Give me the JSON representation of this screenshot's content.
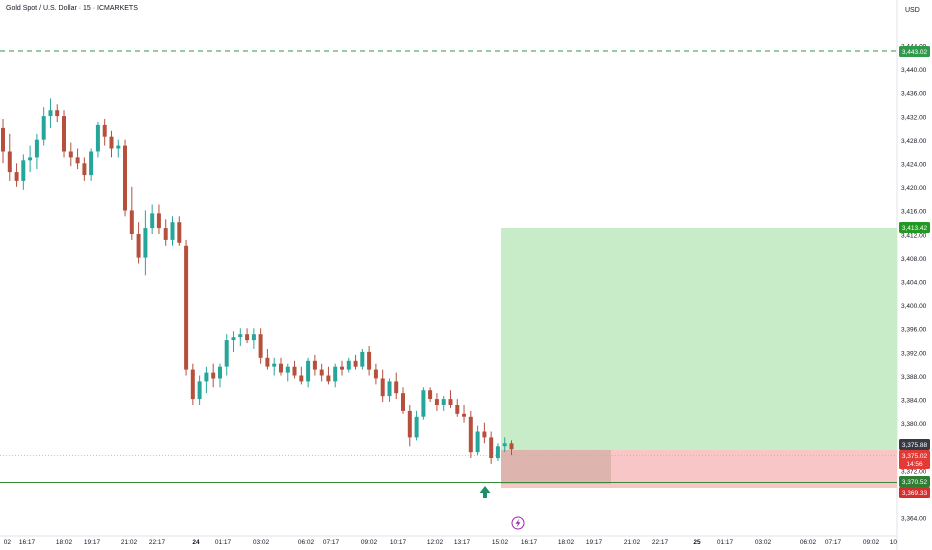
{
  "header": {
    "symbol_title": "Gold Spot / U.S. Dollar · 15 · ICMARKETS",
    "currency": "USD"
  },
  "colors": {
    "up": "#26a69a",
    "down": "#b64f3c",
    "target_zone": "#c8ebc8",
    "stop_zone": "#f8c6c6",
    "dashed_line": "#2e9a4a",
    "entry_line": "#3b8a3b",
    "buy_arrow": "#1a8f6a"
  },
  "price_axis": {
    "ticks": [
      "3,444.00",
      "3,440.00",
      "3,436.00",
      "3,432.00",
      "3,428.00",
      "3,424.00",
      "3,420.00",
      "3,416.00",
      "3,412.00",
      "3,408.00",
      "3,404.00",
      "3,400.00",
      "3,396.00",
      "3,392.00",
      "3,388.00",
      "3,384.00",
      "3,380.00",
      "3,376.00",
      "3,372.00",
      "3,368.00",
      "3,364.00"
    ]
  },
  "time_axis": {
    "labels": [
      "02",
      "16:17",
      "18:02",
      "19:17",
      "21:02",
      "22:17",
      "24",
      "01:17",
      "03:02",
      "06:02",
      "07:17",
      "09:02",
      "10:17",
      "12:02",
      "13:17",
      "15:02",
      "16:17",
      "18:02",
      "19:17",
      "21:02",
      "22:17",
      "25",
      "01:17",
      "03:02",
      "06:02",
      "07:17",
      "09:02",
      "10"
    ]
  },
  "price_tags": {
    "dashed_level": "3,443.02",
    "target": "3,413.42",
    "current_price": "3,375.88",
    "last_price": "3,375.02",
    "countdown": "14:56",
    "entry": "3,370.52",
    "stop": "3,369.33"
  },
  "position": {
    "type": "long",
    "entry": 3370.52,
    "target": 3413.42,
    "stop": 3369.33
  },
  "chart_data": {
    "type": "candlestick",
    "title": "Gold Spot / U.S. Dollar · 15 · ICMARKETS",
    "ylabel": "USD",
    "ylim": [
      3362.5,
      3447.5
    ],
    "candles": [
      [
        3430.0,
        3431.5,
        3424.0,
        3426.0
      ],
      [
        3426.0,
        3429.0,
        3421.0,
        3422.5
      ],
      [
        3422.5,
        3424.0,
        3420.0,
        3421.0
      ],
      [
        3421.0,
        3425.5,
        3419.5,
        3424.5
      ],
      [
        3424.5,
        3427.0,
        3422.5,
        3425.0
      ],
      [
        3425.0,
        3429.0,
        3423.0,
        3428.0
      ],
      [
        3428.0,
        3433.5,
        3427.0,
        3432.0
      ],
      [
        3432.0,
        3435.0,
        3430.0,
        3433.0
      ],
      [
        3433.0,
        3434.0,
        3431.0,
        3432.0
      ],
      [
        3432.0,
        3433.0,
        3425.0,
        3426.0
      ],
      [
        3426.0,
        3427.5,
        3423.5,
        3425.0
      ],
      [
        3425.0,
        3426.5,
        3423.0,
        3424.0
      ],
      [
        3424.0,
        3425.0,
        3421.0,
        3422.0
      ],
      [
        3422.0,
        3426.5,
        3421.0,
        3426.0
      ],
      [
        3426.0,
        3431.0,
        3425.0,
        3430.5
      ],
      [
        3430.5,
        3431.5,
        3427.0,
        3428.5
      ],
      [
        3428.5,
        3429.5,
        3425.0,
        3426.5
      ],
      [
        3426.5,
        3428.0,
        3425.0,
        3427.0
      ],
      [
        3427.0,
        3428.0,
        3415.0,
        3416.0
      ],
      [
        3416.0,
        3420.0,
        3411.0,
        3412.0
      ],
      [
        3412.0,
        3414.0,
        3407.0,
        3408.0
      ],
      [
        3408.0,
        3416.0,
        3405.0,
        3413.0
      ],
      [
        3413.0,
        3417.0,
        3412.0,
        3415.5
      ],
      [
        3415.5,
        3417.0,
        3412.0,
        3413.0
      ],
      [
        3413.0,
        3414.5,
        3410.0,
        3411.0
      ],
      [
        3411.0,
        3415.0,
        3410.0,
        3414.0
      ],
      [
        3414.0,
        3415.0,
        3410.0,
        3410.5
      ],
      [
        3410.0,
        3411.0,
        3388.0,
        3389.0
      ],
      [
        3389.0,
        3390.0,
        3383.0,
        3384.0
      ],
      [
        3384.0,
        3388.0,
        3383.0,
        3387.0
      ],
      [
        3387.0,
        3389.5,
        3385.0,
        3388.5
      ],
      [
        3388.5,
        3390.0,
        3386.0,
        3387.5
      ],
      [
        3387.5,
        3390.0,
        3386.0,
        3389.5
      ],
      [
        3389.5,
        3395.0,
        3388.0,
        3394.0
      ],
      [
        3394.0,
        3395.5,
        3392.0,
        3394.5
      ],
      [
        3394.5,
        3396.0,
        3393.0,
        3395.0
      ],
      [
        3395.0,
        3396.0,
        3393.5,
        3394.0
      ],
      [
        3394.0,
        3396.0,
        3392.5,
        3395.0
      ],
      [
        3395.0,
        3396.0,
        3390.0,
        3391.0
      ],
      [
        3391.0,
        3392.5,
        3389.0,
        3389.5
      ],
      [
        3389.5,
        3391.0,
        3388.0,
        3390.0
      ],
      [
        3390.0,
        3391.0,
        3388.0,
        3388.5
      ],
      [
        3388.5,
        3390.0,
        3387.0,
        3389.5
      ],
      [
        3389.5,
        3390.5,
        3387.5,
        3388.0
      ],
      [
        3388.0,
        3389.5,
        3386.5,
        3387.0
      ],
      [
        3387.0,
        3391.0,
        3386.0,
        3390.5
      ],
      [
        3390.5,
        3391.5,
        3388.0,
        3389.0
      ],
      [
        3389.0,
        3390.0,
        3387.0,
        3388.0
      ],
      [
        3388.0,
        3389.5,
        3386.5,
        3387.0
      ],
      [
        3387.0,
        3390.0,
        3386.0,
        3389.5
      ],
      [
        3389.5,
        3390.5,
        3388.0,
        3389.0
      ],
      [
        3389.0,
        3391.0,
        3388.5,
        3390.5
      ],
      [
        3390.5,
        3391.5,
        3389.0,
        3389.5
      ],
      [
        3389.5,
        3392.5,
        3389.0,
        3392.0
      ],
      [
        3392.0,
        3393.0,
        3388.0,
        3389.0
      ],
      [
        3389.0,
        3390.0,
        3386.5,
        3387.5
      ],
      [
        3387.5,
        3389.0,
        3383.5,
        3384.5
      ],
      [
        3384.5,
        3387.5,
        3383.5,
        3387.0
      ],
      [
        3387.0,
        3388.5,
        3384.0,
        3385.0
      ],
      [
        3385.0,
        3386.0,
        3381.5,
        3382.0
      ],
      [
        3382.0,
        3383.0,
        3376.0,
        3377.5
      ],
      [
        3377.5,
        3382.0,
        3377.0,
        3381.0
      ],
      [
        3381.0,
        3386.0,
        3380.5,
        3385.5
      ],
      [
        3385.5,
        3386.0,
        3383.5,
        3384.0
      ],
      [
        3384.0,
        3385.0,
        3382.0,
        3383.0
      ],
      [
        3383.0,
        3384.5,
        3382.0,
        3384.0
      ],
      [
        3384.0,
        3385.5,
        3382.5,
        3383.0
      ],
      [
        3383.0,
        3384.0,
        3381.0,
        3381.5
      ],
      [
        3381.5,
        3383.0,
        3380.0,
        3381.0
      ],
      [
        3381.0,
        3382.0,
        3374.0,
        3375.0
      ],
      [
        3375.0,
        3379.5,
        3374.5,
        3378.5
      ],
      [
        3378.5,
        3380.0,
        3376.5,
        3377.5
      ],
      [
        3377.5,
        3378.5,
        3373.0,
        3374.0
      ],
      [
        3374.0,
        3376.5,
        3373.5,
        3376.0
      ],
      [
        3376.0,
        3377.5,
        3375.0,
        3376.5
      ],
      [
        3376.5,
        3377.0,
        3374.5,
        3375.5
      ]
    ]
  }
}
